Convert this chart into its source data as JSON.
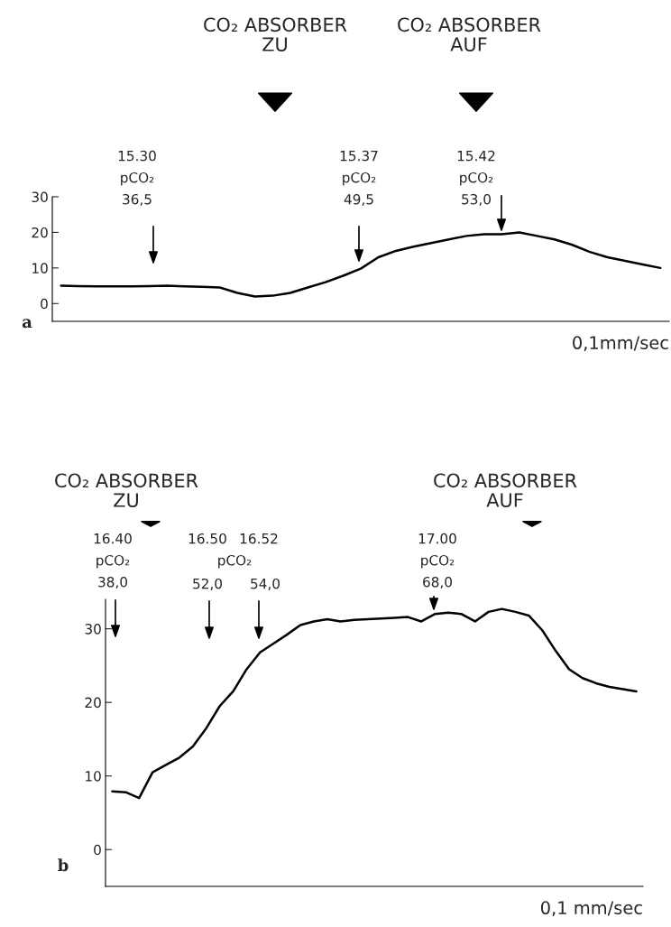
{
  "chart_data": [
    {
      "type": "line",
      "color": "#000000",
      "xlabel": "0,1mm/sec",
      "ylim": [
        -5,
        30
      ],
      "yticks": [
        0,
        10,
        20,
        30
      ],
      "grid": false,
      "line_style": "solid",
      "marker": "none",
      "categories": [
        null,
        null,
        null,
        null,
        null,
        null,
        null,
        null,
        null,
        null,
        null,
        null,
        null,
        null,
        null,
        null,
        null,
        null,
        null,
        null,
        null,
        null,
        null,
        null,
        null,
        null,
        null,
        null,
        null,
        null,
        null,
        null,
        null,
        null,
        null
      ],
      "values": [
        5,
        4.9,
        4.8,
        4.8,
        4.8,
        4.9,
        5,
        4.8,
        4.7,
        4.5,
        3,
        2,
        2.2,
        3,
        4.5,
        6,
        7.8,
        9.8,
        13,
        14.8,
        16,
        17,
        18,
        19,
        19.5,
        19.5,
        20,
        19,
        18,
        16.5,
        14.5,
        13,
        12,
        11,
        10
      ],
      "annotations": [
        "CO₂ ABSORBER\nZU",
        "CO₂ ABSORBER\nAUF",
        "15.30\npCO₂\n36,5",
        "15.37\npCO₂\n49,5",
        "15.42\npCO₂\n53,0",
        "a"
      ]
    },
    {
      "type": "line",
      "color": "#000000",
      "xlabel": "0,1 mm/sec",
      "ylim": [
        -5,
        34
      ],
      "yticks": [
        0,
        10,
        20,
        30
      ],
      "grid": false,
      "line_style": "solid",
      "marker": "none",
      "categories": [
        null,
        null,
        null,
        null,
        null,
        null,
        null,
        null,
        null,
        null,
        null,
        null,
        null,
        null,
        null,
        null,
        null,
        null,
        null,
        null,
        null,
        null,
        null,
        null,
        null,
        null,
        null,
        null,
        null,
        null,
        null,
        null,
        null,
        null,
        null,
        null,
        null,
        null,
        null,
        null
      ],
      "values": [
        7.9,
        7.8,
        7.0,
        10.5,
        11.5,
        12.5,
        14,
        16.5,
        19.5,
        21.5,
        24.5,
        26.8,
        28,
        29.2,
        30.5,
        31,
        31.3,
        31,
        31.2,
        31.3,
        31.4,
        31.5,
        31.6,
        31,
        32,
        32.2,
        32,
        31,
        32.3,
        32.7,
        32.3,
        31.8,
        29.8,
        27,
        24.5,
        23.3,
        22.6,
        22.1,
        21.8,
        21.5
      ],
      "annotations": [
        "CO₂ ABSORBER\nZU",
        "CO₂ ABSORBER\nAUF",
        "16.40\npCO₂\n38,0",
        "16.50",
        "pCO₂",
        "52,0",
        "16.52",
        "54,0",
        "17.00\npCO₂\n68,0",
        "b"
      ]
    }
  ]
}
